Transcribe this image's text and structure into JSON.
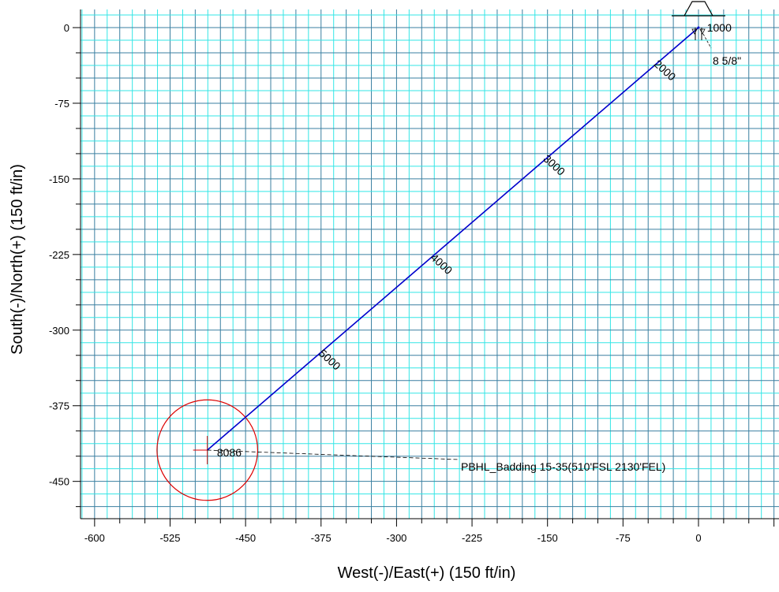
{
  "chart_data": {
    "type": "line",
    "xlabel": "West(-)/East(+) (150 ft/in)",
    "ylabel": "South(-)/North(+) (150 ft/in)",
    "xlim": [
      -614,
      80
    ],
    "ylim": [
      -487,
      18
    ],
    "x_ticks": [
      -600,
      -525,
      -450,
      -375,
      -300,
      -225,
      -150,
      -75,
      0
    ],
    "x_tick_labels": [
      "-600",
      "-525",
      "-450",
      "-375",
      "-300",
      "-225",
      "-150",
      "-75",
      "0"
    ],
    "y_ticks": [
      0,
      -75,
      -150,
      -225,
      -300,
      -375,
      -450
    ],
    "y_tick_labels": [
      "0",
      "-75",
      "-150",
      "-225",
      "-300",
      "-375",
      "-450"
    ],
    "grid": true,
    "colors": {
      "grid_minor": "#33e6e6",
      "grid_major": "#3a7fa0",
      "wellpath": "#0000cc",
      "target": "#dd0000",
      "marker": "#000000"
    },
    "series": [
      {
        "x": [
          0,
          -488
        ],
        "y": [
          0,
          -419
        ]
      }
    ],
    "md_labels": [
      {
        "text": "1000",
        "x": 10,
        "y": 0
      },
      {
        "text": "2000",
        "x": -45,
        "y": -37
      },
      {
        "text": "3000",
        "x": -155,
        "y": -131
      },
      {
        "text": "4000",
        "x": -267,
        "y": -229
      },
      {
        "text": "5000",
        "x": -378,
        "y": -324
      },
      {
        "text": "8086",
        "x": -480,
        "y": -419
      }
    ],
    "casing": {
      "text": "8 5/8\"",
      "x": 13,
      "y": -34
    },
    "target": {
      "text": "PBHL_Badding 15-35(510'FSL 2130'FEL)",
      "center_x": -488,
      "center_y": -419,
      "radius_ft": 50
    }
  }
}
